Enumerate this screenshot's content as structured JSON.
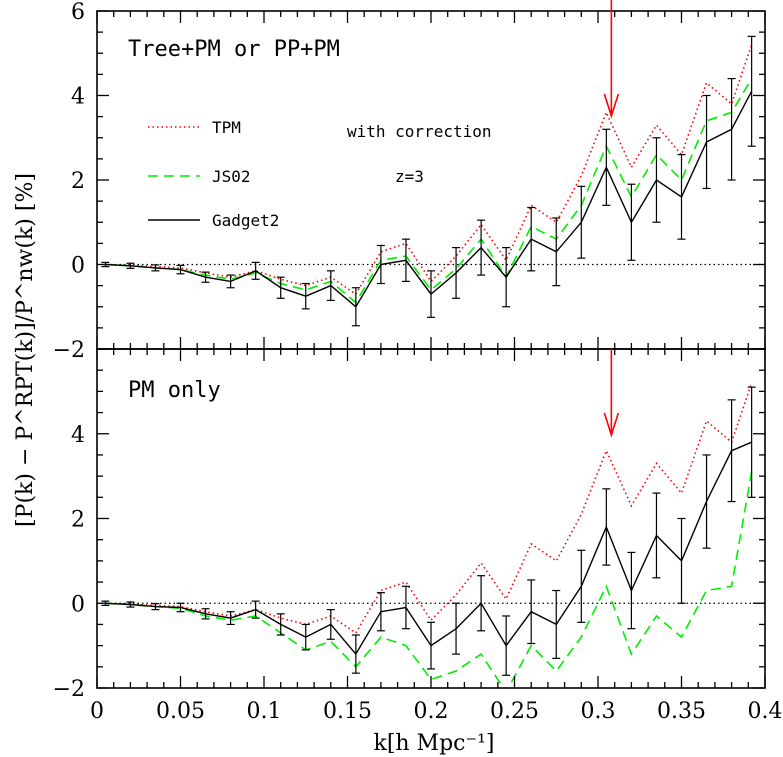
{
  "chart_data": {
    "type": "line",
    "xlabel": "k[h Mpc⁻¹]",
    "ylabel": "[P(k) − P^RPT(k)]/P^nw(k) [%]",
    "xlim": [
      0,
      0.4
    ],
    "x_ticks": [
      "0",
      "0.05",
      "0.1",
      "0.15",
      "0.2",
      "0.25",
      "0.3",
      "0.35",
      "0.4"
    ],
    "legend_placement": "upper-left of top panel",
    "panels": [
      {
        "title": "Tree+PM or PP+PM",
        "ylim": [
          -2,
          6
        ],
        "y_ticks": [
          "−2",
          "0",
          "2",
          "4",
          "6"
        ],
        "annotations": [
          "with correction",
          "z=3"
        ],
        "arrow_k": 0.308,
        "series": [
          {
            "name": "TPM",
            "color": "#ff0000",
            "style": "dotted",
            "x": [
              0.005,
              0.02,
              0.035,
              0.05,
              0.065,
              0.08,
              0.095,
              0.11,
              0.125,
              0.14,
              0.155,
              0.17,
              0.185,
              0.2,
              0.215,
              0.23,
              0.245,
              0.26,
              0.275,
              0.29,
              0.305,
              0.32,
              0.335,
              0.35,
              0.365,
              0.38,
              0.392
            ],
            "y": [
              0,
              -0.02,
              -0.05,
              -0.08,
              -0.2,
              -0.3,
              -0.15,
              -0.35,
              -0.5,
              -0.3,
              -0.7,
              0.3,
              0.5,
              -0.4,
              0.2,
              0.95,
              0.1,
              1.4,
              1.0,
              2.1,
              3.6,
              2.3,
              3.3,
              2.6,
              4.3,
              3.8,
              5.2
            ]
          },
          {
            "name": "JS02",
            "color": "#00ee00",
            "style": "dashed",
            "x": [
              0.005,
              0.02,
              0.035,
              0.05,
              0.065,
              0.08,
              0.095,
              0.11,
              0.125,
              0.14,
              0.155,
              0.17,
              0.185,
              0.2,
              0.215,
              0.23,
              0.245,
              0.26,
              0.275,
              0.29,
              0.305,
              0.32,
              0.335,
              0.35,
              0.365,
              0.38,
              0.392
            ],
            "y": [
              0,
              -0.03,
              -0.08,
              -0.12,
              -0.25,
              -0.35,
              -0.2,
              -0.45,
              -0.6,
              -0.4,
              -0.9,
              0.1,
              0.2,
              -0.6,
              -0.1,
              0.6,
              -0.3,
              0.9,
              0.6,
              1.4,
              2.8,
              1.6,
              2.6,
              2.0,
              3.4,
              3.6,
              4.4
            ]
          },
          {
            "name": "Gadget2",
            "color": "#000000",
            "style": "solid",
            "x": [
              0.005,
              0.02,
              0.035,
              0.05,
              0.065,
              0.08,
              0.095,
              0.11,
              0.125,
              0.14,
              0.155,
              0.17,
              0.185,
              0.2,
              0.215,
              0.23,
              0.245,
              0.26,
              0.275,
              0.29,
              0.305,
              0.32,
              0.335,
              0.35,
              0.365,
              0.38,
              0.392
            ],
            "y": [
              0,
              -0.03,
              -0.08,
              -0.12,
              -0.3,
              -0.4,
              -0.15,
              -0.55,
              -0.75,
              -0.5,
              -1.0,
              0.0,
              0.1,
              -0.7,
              -0.2,
              0.4,
              -0.3,
              0.6,
              0.3,
              1.0,
              2.3,
              1.0,
              2.0,
              1.6,
              2.9,
              3.2,
              4.1
            ],
            "err": [
              0.05,
              0.06,
              0.07,
              0.1,
              0.12,
              0.15,
              0.2,
              0.25,
              0.3,
              0.35,
              0.45,
              0.45,
              0.5,
              0.55,
              0.6,
              0.65,
              0.7,
              0.75,
              0.8,
              0.85,
              0.9,
              0.9,
              1.0,
              1.0,
              1.1,
              1.2,
              1.3
            ]
          }
        ]
      },
      {
        "title": "PM only",
        "ylim": [
          -2,
          6
        ],
        "y_ticks": [
          "−2",
          "0",
          "2",
          "4",
          ""
        ],
        "annotations": [],
        "arrow_k": 0.308,
        "series": [
          {
            "name": "TPM",
            "color": "#ff0000",
            "style": "dotted",
            "x": [
              0.005,
              0.02,
              0.035,
              0.05,
              0.065,
              0.08,
              0.095,
              0.11,
              0.125,
              0.14,
              0.155,
              0.17,
              0.185,
              0.2,
              0.215,
              0.23,
              0.245,
              0.26,
              0.275,
              0.29,
              0.305,
              0.32,
              0.335,
              0.35,
              0.365,
              0.38,
              0.392
            ],
            "y": [
              0,
              -0.02,
              -0.05,
              -0.08,
              -0.2,
              -0.3,
              -0.15,
              -0.35,
              -0.5,
              -0.3,
              -0.7,
              0.3,
              0.5,
              -0.4,
              0.2,
              0.95,
              0.1,
              1.4,
              1.0,
              2.1,
              3.6,
              2.3,
              3.3,
              2.6,
              4.3,
              3.8,
              5.2
            ]
          },
          {
            "name": "JS02",
            "color": "#00ee00",
            "style": "dashed",
            "x": [
              0.005,
              0.02,
              0.035,
              0.05,
              0.065,
              0.08,
              0.095,
              0.11,
              0.125,
              0.14,
              0.155,
              0.17,
              0.185,
              0.2,
              0.215,
              0.23,
              0.245,
              0.26,
              0.275,
              0.29,
              0.305,
              0.32,
              0.335,
              0.35,
              0.365,
              0.38,
              0.392
            ],
            "y": [
              0,
              -0.03,
              -0.08,
              -0.12,
              -0.3,
              -0.4,
              -0.3,
              -0.7,
              -1.1,
              -0.9,
              -1.5,
              -0.8,
              -1.0,
              -1.8,
              -1.6,
              -1.2,
              -2.1,
              -1.0,
              -1.6,
              -0.8,
              0.4,
              -1.2,
              -0.3,
              -0.8,
              0.3,
              0.4,
              3.1
            ]
          },
          {
            "name": "Gadget2",
            "color": "#000000",
            "style": "solid",
            "x": [
              0.005,
              0.02,
              0.035,
              0.05,
              0.065,
              0.08,
              0.095,
              0.11,
              0.125,
              0.14,
              0.155,
              0.17,
              0.185,
              0.2,
              0.215,
              0.23,
              0.245,
              0.26,
              0.275,
              0.29,
              0.305,
              0.32,
              0.335,
              0.35,
              0.365,
              0.38,
              0.392
            ],
            "y": [
              0,
              -0.03,
              -0.08,
              -0.1,
              -0.25,
              -0.35,
              -0.15,
              -0.5,
              -0.8,
              -0.5,
              -1.2,
              -0.2,
              -0.1,
              -1.0,
              -0.6,
              0.0,
              -1.0,
              -0.2,
              -0.5,
              0.4,
              1.8,
              0.3,
              1.6,
              1.0,
              2.4,
              3.6,
              3.8
            ],
            "err": [
              0.05,
              0.06,
              0.07,
              0.1,
              0.12,
              0.15,
              0.2,
              0.25,
              0.3,
              0.35,
              0.45,
              0.45,
              0.5,
              0.55,
              0.6,
              0.65,
              0.7,
              0.75,
              0.8,
              0.85,
              0.9,
              0.9,
              1.0,
              1.0,
              1.1,
              1.2,
              1.3
            ]
          }
        ]
      }
    ]
  }
}
